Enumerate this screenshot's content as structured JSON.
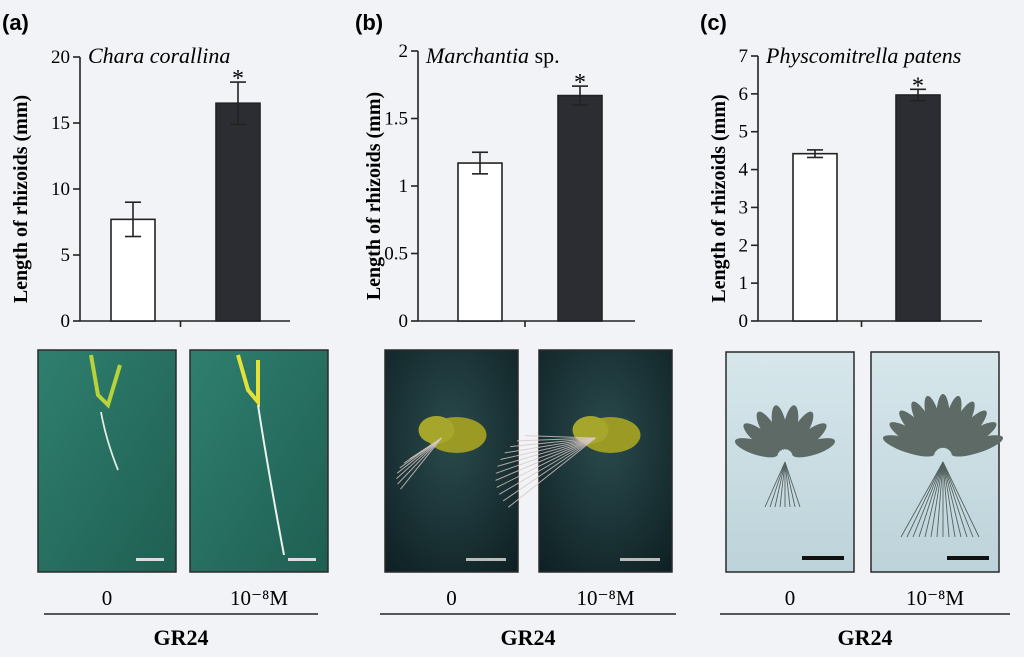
{
  "chart_data": [
    {
      "type": "bar",
      "panel_label": "(a)",
      "title": "Chara corallina",
      "title_suffix": "",
      "ylabel": "Length of rhizoids (mm)",
      "ylim": [
        0,
        20
      ],
      "yticks": [
        "0",
        "5",
        "10",
        "15",
        "20"
      ],
      "categories": [
        "0",
        "10⁻⁸M"
      ],
      "values": [
        7.7,
        16.5
      ],
      "errors": [
        1.3,
        1.6
      ],
      "bar_colors": [
        "#ffffff",
        "#2b2d33"
      ],
      "significance": [
        "",
        "*"
      ],
      "group_label": "GR24",
      "photos": [
        "chara-control",
        "chara-treated"
      ]
    },
    {
      "type": "bar",
      "panel_label": "(b)",
      "title": "Marchantia",
      "title_suffix": " sp.",
      "ylabel": "Length of rhizoids (mm)",
      "ylim": [
        0,
        2
      ],
      "yticks": [
        "0",
        "0.5",
        "1",
        "1.5",
        "2"
      ],
      "categories": [
        "0",
        "10⁻⁸M"
      ],
      "values": [
        1.17,
        1.67
      ],
      "errors": [
        0.08,
        0.07
      ],
      "bar_colors": [
        "#ffffff",
        "#2b2d33"
      ],
      "significance": [
        "",
        "*"
      ],
      "group_label": "GR24",
      "photos": [
        "marchantia-control",
        "marchantia-treated"
      ]
    },
    {
      "type": "bar",
      "panel_label": "(c)",
      "title": "Physcomitrella patens",
      "title_suffix": "",
      "ylabel": "Length of rhizoids (mm)",
      "ylim": [
        0,
        7
      ],
      "yticks": [
        "0",
        "1",
        "2",
        "3",
        "4",
        "5",
        "6",
        "7"
      ],
      "categories": [
        "0",
        "10⁻⁸M"
      ],
      "values": [
        4.42,
        5.97
      ],
      "errors": [
        0.1,
        0.15
      ],
      "bar_colors": [
        "#ffffff",
        "#2b2d33"
      ],
      "significance": [
        "",
        "*"
      ],
      "group_label": "GR24",
      "photos": [
        "physcomitrella-control",
        "physcomitrella-treated"
      ]
    }
  ]
}
